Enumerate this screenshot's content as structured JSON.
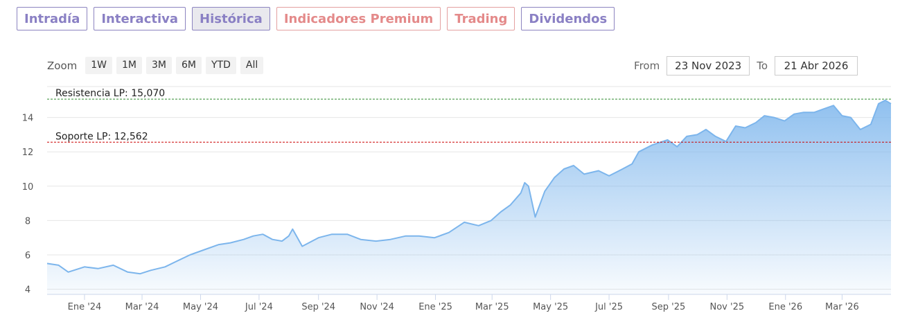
{
  "tabs": [
    {
      "label": "Intradía",
      "active": false,
      "premium": false
    },
    {
      "label": "Interactiva",
      "active": false,
      "premium": false
    },
    {
      "label": "Histórica",
      "active": true,
      "premium": false
    },
    {
      "label": "Indicadores Premium",
      "active": false,
      "premium": true
    },
    {
      "label": "Trading",
      "active": false,
      "premium": true
    },
    {
      "label": "Dividendos",
      "active": false,
      "premium": false
    }
  ],
  "zoom": {
    "label": "Zoom",
    "buttons": [
      "1W",
      "1M",
      "3M",
      "6M",
      "YTD",
      "All"
    ]
  },
  "range": {
    "from_label": "From",
    "from_value": "23 Nov 2023",
    "to_label": "To",
    "to_value": "21 Abr 2026"
  },
  "colors": {
    "tab_text": "#8a80c4",
    "premium_text": "#e48a8a",
    "line": "#7cb5ec",
    "support": "#cc0000",
    "resistance": "#2e8b2e"
  },
  "chart_data": {
    "type": "area",
    "x_tick_labels": [
      "Ene '24",
      "Mar '24",
      "May '24",
      "Jul '24",
      "Sep '24",
      "Nov '24",
      "Ene '25",
      "Mar '25",
      "May '25",
      "Jul '25",
      "Sep '25",
      "Nov '25",
      "Ene '26",
      "Mar '26"
    ],
    "y_ticks": [
      4,
      6,
      8,
      10,
      12,
      14
    ],
    "ylim": [
      3.7,
      15.8
    ],
    "xlim": [
      "2023-11-23",
      "2026-04-21"
    ],
    "grid": true,
    "series": [
      {
        "x": [
          "2023-11-23",
          "2023-12-05",
          "2023-12-15",
          "2024-01-01",
          "2024-01-15",
          "2024-01-31",
          "2024-02-15",
          "2024-02-28",
          "2024-03-10",
          "2024-03-25",
          "2024-04-05",
          "2024-04-20",
          "2024-05-05",
          "2024-05-20",
          "2024-06-01",
          "2024-06-15",
          "2024-06-25",
          "2024-07-05",
          "2024-07-15",
          "2024-07-25",
          "2024-08-01",
          "2024-08-05",
          "2024-08-15",
          "2024-09-01",
          "2024-09-15",
          "2024-10-01",
          "2024-10-15",
          "2024-10-31",
          "2024-11-15",
          "2024-12-01",
          "2024-12-15",
          "2024-12-31",
          "2025-01-15",
          "2025-01-31",
          "2025-02-15",
          "2025-02-28",
          "2025-03-10",
          "2025-03-20",
          "2025-03-31",
          "2025-04-04",
          "2025-04-08",
          "2025-04-15",
          "2025-04-25",
          "2025-05-05",
          "2025-05-15",
          "2025-05-25",
          "2025-06-05",
          "2025-06-20",
          "2025-07-01",
          "2025-07-15",
          "2025-07-25",
          "2025-08-01",
          "2025-08-15",
          "2025-08-31",
          "2025-09-10",
          "2025-09-20",
          "2025-10-01",
          "2025-10-10",
          "2025-10-20",
          "2025-10-31",
          "2025-11-10",
          "2025-11-20",
          "2025-12-01",
          "2025-12-10",
          "2025-12-20",
          "2025-12-31",
          "2026-01-10",
          "2026-01-20",
          "2026-01-31",
          "2026-02-10",
          "2026-02-20",
          "2026-03-01",
          "2026-03-10",
          "2026-03-20",
          "2026-03-31",
          "2026-04-08",
          "2026-04-15",
          "2026-04-21"
        ],
        "values": [
          5.5,
          5.4,
          5.0,
          5.3,
          5.2,
          5.4,
          5.0,
          4.9,
          5.1,
          5.3,
          5.6,
          6.0,
          6.3,
          6.6,
          6.7,
          6.9,
          7.1,
          7.2,
          6.9,
          6.8,
          7.1,
          7.5,
          6.5,
          7.0,
          7.2,
          7.2,
          6.9,
          6.8,
          6.9,
          7.1,
          7.1,
          7.0,
          7.3,
          7.9,
          7.7,
          8.0,
          8.5,
          8.9,
          9.6,
          10.2,
          10.0,
          8.2,
          9.7,
          10.5,
          11.0,
          11.2,
          10.7,
          10.9,
          10.6,
          11.0,
          11.3,
          12.0,
          12.4,
          12.7,
          12.3,
          12.9,
          13.0,
          13.3,
          12.9,
          12.6,
          13.5,
          13.4,
          13.7,
          14.1,
          14.0,
          13.8,
          14.2,
          14.3,
          14.3,
          14.5,
          14.7,
          14.1,
          14.0,
          13.3,
          13.6,
          14.8,
          15.0,
          14.8
        ]
      }
    ],
    "annotations": [
      {
        "label": "Resistencia LP: 15,070",
        "value": 15.07
      },
      {
        "label": "Soporte LP: 12,562",
        "value": 12.562
      }
    ]
  }
}
